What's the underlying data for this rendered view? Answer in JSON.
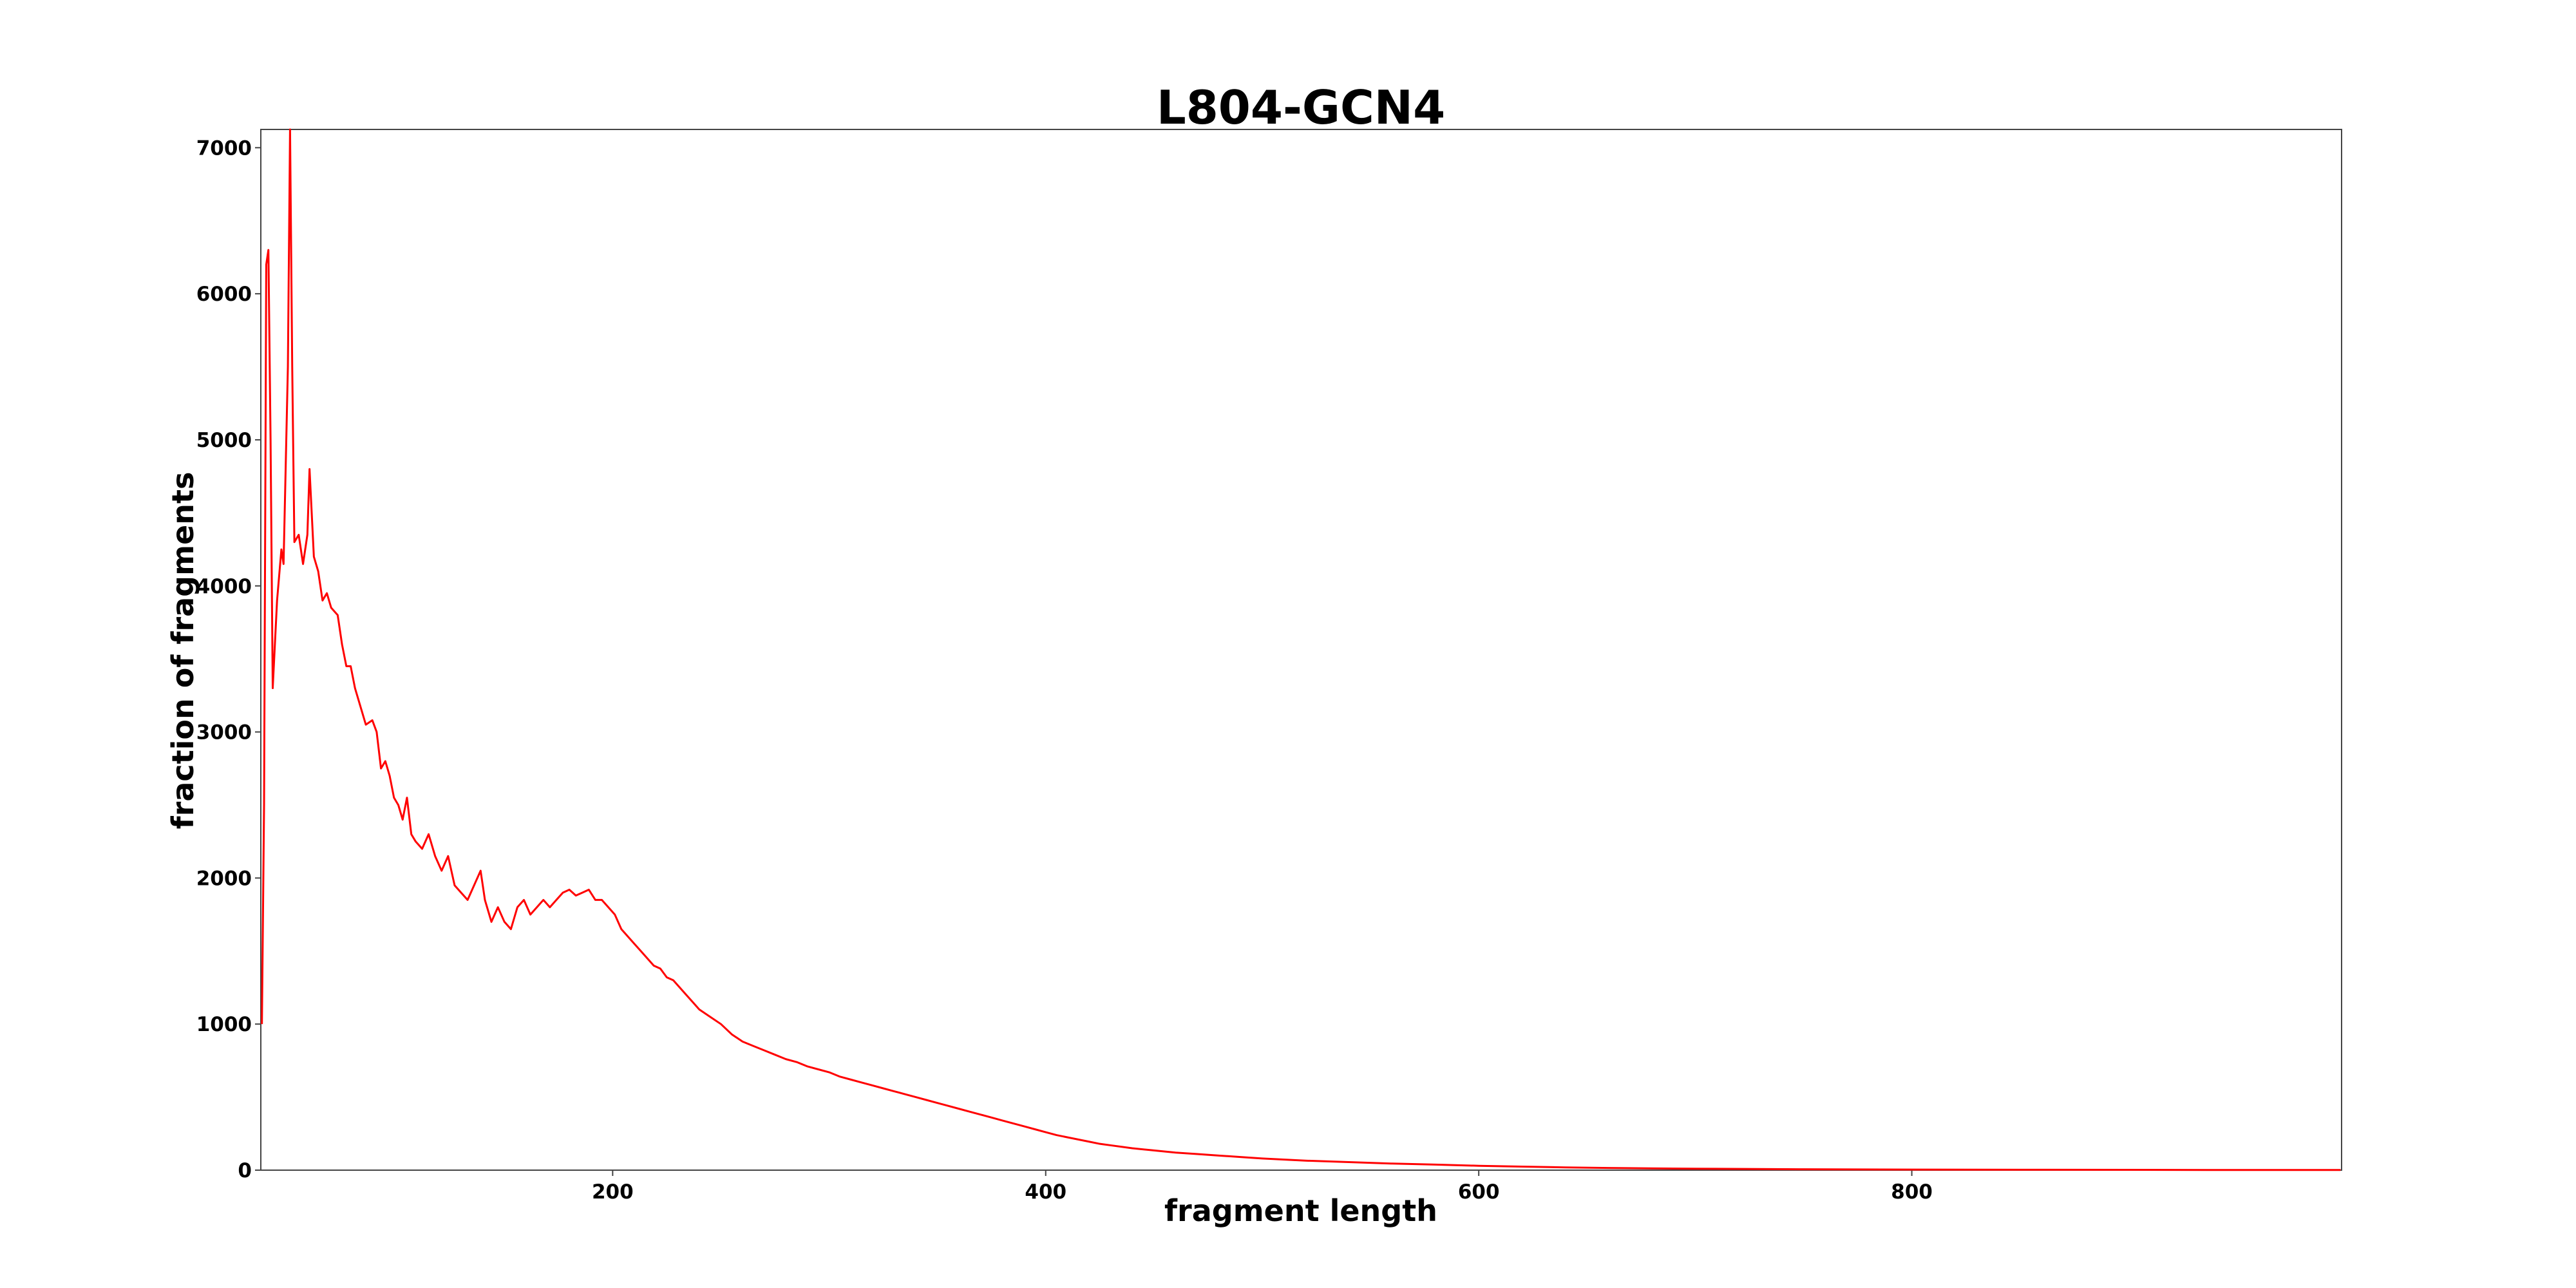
{
  "chart_data": {
    "type": "line",
    "title": "L804-GCN4",
    "xlabel": "fragment length",
    "ylabel": "fraction of fragments",
    "xlim": [
      37.5,
      998.5
    ],
    "ylim": [
      0,
      7125
    ],
    "xticks": [
      200,
      400,
      600,
      800
    ],
    "yticks": [
      0,
      1000,
      2000,
      3000,
      4000,
      5000,
      6000,
      7000
    ],
    "grid": false,
    "series": [
      {
        "color": "#ff0000",
        "x": [
          38,
          39,
          40,
          41,
          42,
          43,
          45,
          47,
          48,
          50,
          51,
          52,
          53,
          55,
          57,
          59,
          60,
          62,
          64,
          66,
          68,
          70,
          73,
          75,
          77,
          79,
          81,
          84,
          86,
          89,
          91,
          93,
          95,
          97,
          99,
          101,
          103,
          105,
          107,
          109,
          112,
          115,
          118,
          121,
          124,
          127,
          130,
          133,
          136,
          139,
          141,
          144,
          147,
          150,
          153,
          156,
          159,
          162,
          165,
          168,
          171,
          174,
          177,
          180,
          183,
          186,
          189,
          192,
          195,
          198,
          201,
          204,
          207,
          210,
          213,
          216,
          219,
          222,
          225,
          228,
          231,
          234,
          237,
          240,
          245,
          250,
          255,
          260,
          265,
          270,
          275,
          280,
          285,
          290,
          295,
          300,
          305,
          310,
          315,
          320,
          325,
          330,
          335,
          340,
          345,
          350,
          355,
          360,
          365,
          370,
          375,
          380,
          385,
          390,
          395,
          400,
          405,
          410,
          415,
          420,
          425,
          430,
          440,
          450,
          460,
          470,
          480,
          490,
          500,
          520,
          540,
          560,
          580,
          600,
          620,
          640,
          660,
          680,
          700,
          750,
          800,
          850,
          900,
          950,
          998
        ],
        "values": [
          1000,
          2500,
          6200,
          6300,
          5000,
          3300,
          3900,
          4250,
          4150,
          5500,
          7125,
          5500,
          4300,
          4350,
          4150,
          4350,
          4800,
          4200,
          4100,
          3900,
          3950,
          3850,
          3800,
          3600,
          3450,
          3450,
          3300,
          3150,
          3050,
          3080,
          3000,
          2750,
          2800,
          2700,
          2550,
          2500,
          2400,
          2550,
          2300,
          2250,
          2200,
          2300,
          2150,
          2050,
          2150,
          1950,
          1900,
          1850,
          1950,
          2050,
          1850,
          1700,
          1800,
          1700,
          1650,
          1800,
          1850,
          1750,
          1800,
          1850,
          1800,
          1850,
          1900,
          1920,
          1880,
          1900,
          1920,
          1850,
          1850,
          1800,
          1750,
          1650,
          1600,
          1550,
          1500,
          1450,
          1400,
          1380,
          1320,
          1300,
          1250,
          1200,
          1150,
          1100,
          1050,
          1000,
          930,
          880,
          850,
          820,
          790,
          760,
          740,
          710,
          690,
          670,
          640,
          620,
          600,
          580,
          560,
          540,
          520,
          500,
          480,
          460,
          440,
          420,
          400,
          380,
          360,
          340,
          320,
          300,
          280,
          260,
          240,
          225,
          210,
          195,
          180,
          170,
          150,
          135,
          120,
          110,
          100,
          90,
          80,
          65,
          55,
          45,
          38,
          30,
          24,
          19,
          15,
          12,
          10,
          6,
          4,
          3,
          2,
          1,
          1
        ]
      }
    ]
  }
}
